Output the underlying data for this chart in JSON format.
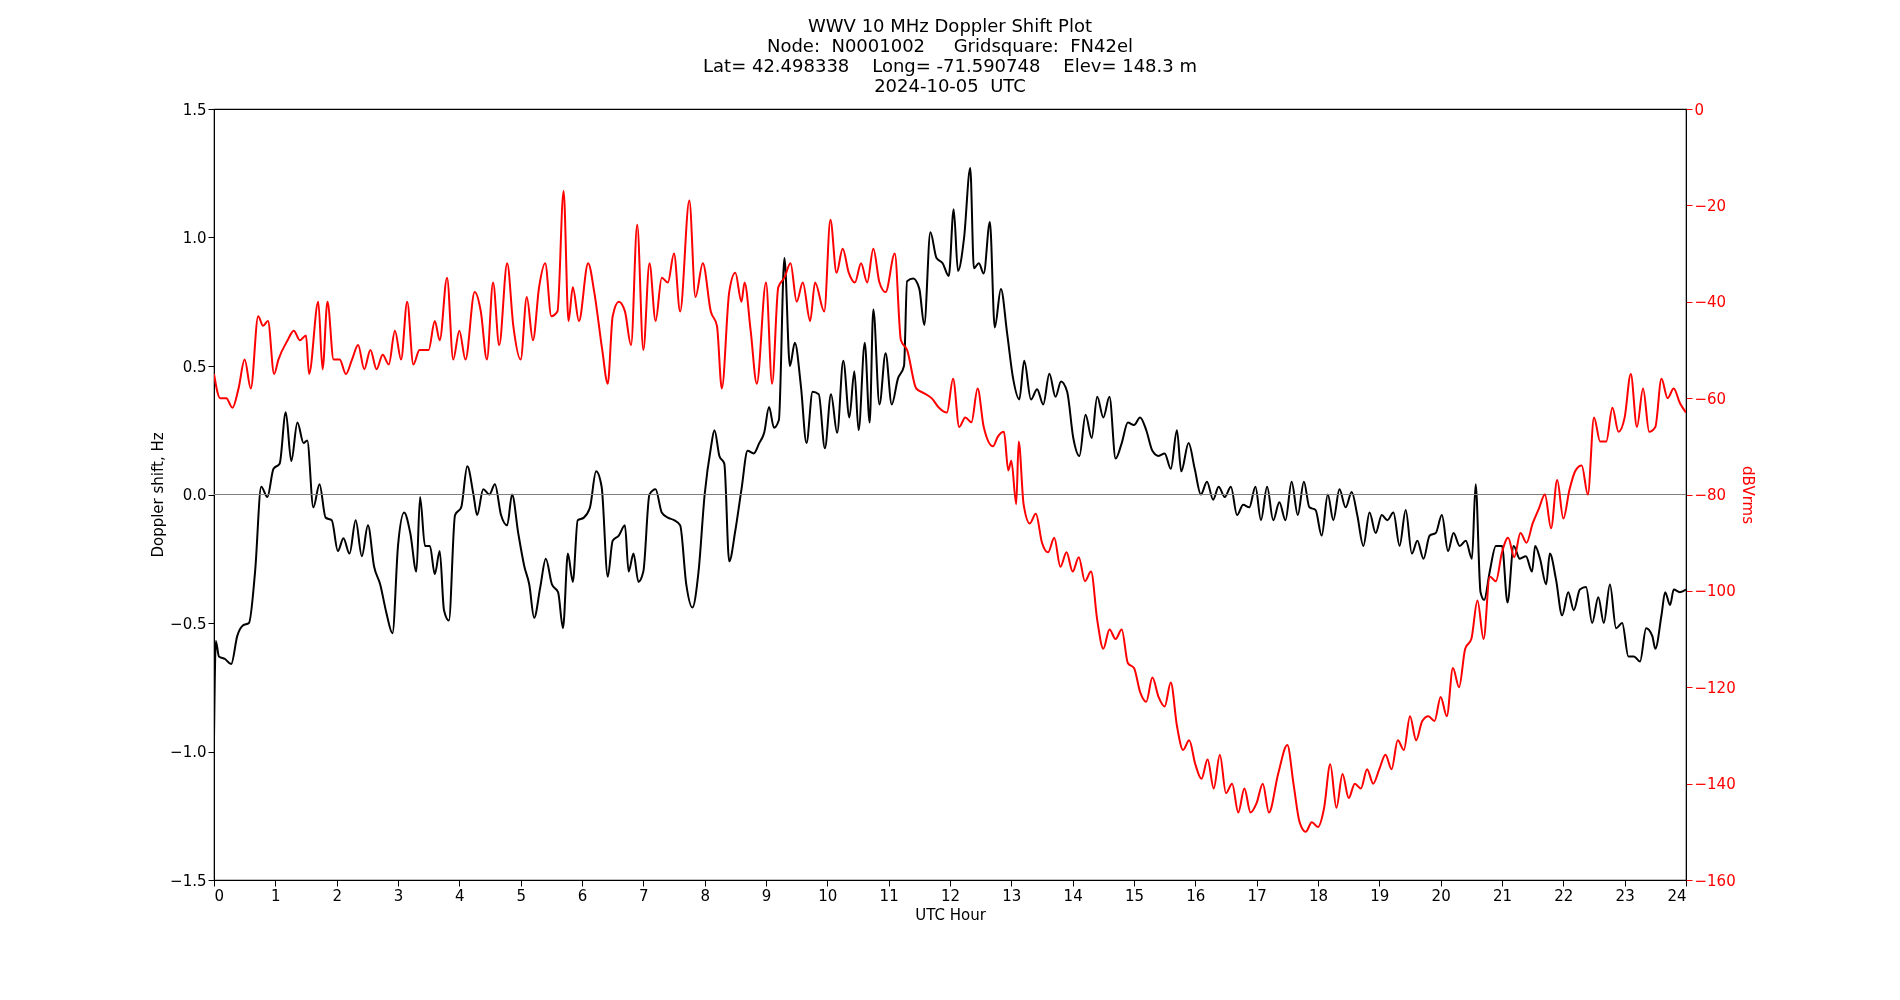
{
  "chart_data": {
    "type": "line",
    "title": "WWV 10 MHz Doppler Shift Plot",
    "subtitle": [
      "Node:  N0001002     Gridsquare:  FN42el",
      "Lat= 42.498338    Long= -71.590748    Elev= 148.3 m",
      "2024-10-05  UTC"
    ],
    "xlabel": "UTC Hour",
    "ylabel": "Doppler shift, Hz",
    "y2label": "dBVrms",
    "xlim": [
      0,
      24
    ],
    "xticks": [
      0,
      1,
      2,
      3,
      4,
      5,
      6,
      7,
      8,
      9,
      10,
      11,
      12,
      13,
      14,
      15,
      16,
      17,
      18,
      19,
      20,
      21,
      22,
      23,
      24
    ],
    "ylim": [
      -1.5,
      1.5
    ],
    "yticks": [
      {
        "value": -1.5,
        "label": "−1.5"
      },
      {
        "value": -1,
        "label": "−1.0"
      },
      {
        "value": -0.5,
        "label": "−0.5"
      },
      {
        "value": 0,
        "label": "0.0"
      },
      {
        "value": 0.5,
        "label": "0.5"
      },
      {
        "value": 1,
        "label": "1.0"
      },
      {
        "value": 1.5,
        "label": "1.5"
      }
    ],
    "y2lim": [
      -160,
      0
    ],
    "y2ticks": [
      {
        "value": -160,
        "label": "−160"
      },
      {
        "value": -140,
        "label": "−140"
      },
      {
        "value": -120,
        "label": "−120"
      },
      {
        "value": -100,
        "label": "−100"
      },
      {
        "value": -80,
        "label": "−80"
      },
      {
        "value": -60,
        "label": "−60"
      },
      {
        "value": -40,
        "label": "−40"
      },
      {
        "value": -20,
        "label": "−20"
      },
      0
    ],
    "ref_lines": [
      {
        "axis": "y",
        "value": 0,
        "color": "#808080"
      }
    ],
    "series": [
      {
        "color": "#000000",
        "x": [
          0,
          0.03,
          0.08,
          0.18,
          0.28,
          0.38,
          0.47,
          0.57,
          0.67,
          0.77,
          0.87,
          0.97,
          1.07,
          1.17,
          1.26,
          1.36,
          1.46,
          1.52,
          1.62,
          1.72,
          1.82,
          1.92,
          2.02,
          2.11,
          2.21,
          2.31,
          2.41,
          2.51,
          2.61,
          2.71,
          2.81,
          2.91,
          3.0,
          3.1,
          3.2,
          3.3,
          3.36,
          3.44,
          3.52,
          3.6,
          3.68,
          3.75,
          3.83,
          3.93,
          4.03,
          4.13,
          4.23,
          4.29,
          4.39,
          4.49,
          4.58,
          4.68,
          4.78,
          4.86,
          4.96,
          5.06,
          5.14,
          5.22,
          5.32,
          5.41,
          5.51,
          5.61,
          5.69,
          5.77,
          5.85,
          5.93,
          6.03,
          6.13,
          6.23,
          6.32,
          6.42,
          6.5,
          6.6,
          6.7,
          6.76,
          6.84,
          6.92,
          7.0,
          7.1,
          7.2,
          7.3,
          7.4,
          7.5,
          7.6,
          7.7,
          7.8,
          7.9,
          8.0,
          8.1,
          8.16,
          8.24,
          8.32,
          8.4,
          8.5,
          8.6,
          8.7,
          8.8,
          8.89,
          8.97,
          9.05,
          9.13,
          9.21,
          9.3,
          9.39,
          9.47,
          9.57,
          9.66,
          9.76,
          9.86,
          9.96,
          10.06,
          10.16,
          10.26,
          10.36,
          10.44,
          10.51,
          10.61,
          10.69,
          10.75,
          10.85,
          10.95,
          11.05,
          11.15,
          11.25,
          11.3,
          11.4,
          11.5,
          11.58,
          11.68,
          11.78,
          11.88,
          11.98,
          12.06,
          12.13,
          12.23,
          12.33,
          12.39,
          12.47,
          12.55,
          12.65,
          12.73,
          12.83,
          12.93,
          13.03,
          13.13,
          13.21,
          13.32,
          13.42,
          13.52,
          13.62,
          13.72,
          13.81,
          13.91,
          14.01,
          14.11,
          14.21,
          14.31,
          14.4,
          14.5,
          14.6,
          14.7,
          14.8,
          14.9,
          15.0,
          15.1,
          15.2,
          15.3,
          15.4,
          15.5,
          15.6,
          15.7,
          15.77,
          15.89,
          15.99,
          16.09,
          16.19,
          16.29,
          16.38,
          16.48,
          16.58,
          16.68,
          16.78,
          16.88,
          16.98,
          17.07,
          17.17,
          17.27,
          17.37,
          17.47,
          17.57,
          17.67,
          17.77,
          17.86,
          17.96,
          18.06,
          18.16,
          18.25,
          18.35,
          18.45,
          18.55,
          18.64,
          18.74,
          18.84,
          18.94,
          19.04,
          19.13,
          19.23,
          19.33,
          19.43,
          19.53,
          19.62,
          19.72,
          19.82,
          19.92,
          20.02,
          20.12,
          20.21,
          20.31,
          20.41,
          20.51,
          20.57,
          20.65,
          20.71,
          20.8,
          20.9,
          21.0,
          21.09,
          21.19,
          21.29,
          21.39,
          21.49,
          21.54,
          21.62,
          21.72,
          21.78,
          21.88,
          21.98,
          22.08,
          22.17,
          22.27,
          22.37,
          22.47,
          22.57,
          22.66,
          22.76,
          22.86,
          22.96,
          23.06,
          23.15,
          23.25,
          23.35,
          23.45,
          23.5,
          23.6,
          23.66,
          23.74,
          23.8,
          23.9,
          24.0
        ],
        "values": [
          -0.95,
          -0.57,
          -0.63,
          -0.64,
          -0.66,
          -0.55,
          -0.51,
          -0.5,
          -0.3,
          0.03,
          -0.01,
          0.1,
          0.12,
          0.32,
          0.13,
          0.28,
          0.2,
          0.21,
          -0.05,
          0.04,
          -0.09,
          -0.1,
          -0.22,
          -0.17,
          -0.23,
          -0.1,
          -0.24,
          -0.12,
          -0.28,
          -0.35,
          -0.46,
          -0.54,
          -0.2,
          -0.07,
          -0.15,
          -0.3,
          -0.01,
          -0.2,
          -0.2,
          -0.31,
          -0.22,
          -0.45,
          -0.49,
          -0.08,
          -0.05,
          0.11,
          0.0,
          -0.08,
          0.02,
          0.0,
          0.04,
          -0.08,
          -0.12,
          0.0,
          -0.15,
          -0.28,
          -0.35,
          -0.48,
          -0.36,
          -0.25,
          -0.35,
          -0.38,
          -0.52,
          -0.23,
          -0.34,
          -0.1,
          -0.09,
          -0.05,
          0.09,
          0.03,
          -0.32,
          -0.18,
          -0.16,
          -0.12,
          -0.3,
          -0.23,
          -0.34,
          -0.3,
          0.0,
          0.02,
          -0.07,
          -0.09,
          -0.1,
          -0.12,
          -0.35,
          -0.44,
          -0.3,
          0.0,
          0.18,
          0.25,
          0.15,
          0.12,
          -0.26,
          -0.14,
          0.02,
          0.17,
          0.16,
          0.2,
          0.24,
          0.34,
          0.26,
          0.29,
          0.92,
          0.5,
          0.59,
          0.42,
          0.2,
          0.4,
          0.39,
          0.18,
          0.39,
          0.24,
          0.52,
          0.3,
          0.48,
          0.25,
          0.59,
          0.28,
          0.72,
          0.35,
          0.55,
          0.35,
          0.45,
          0.5,
          0.83,
          0.84,
          0.8,
          0.66,
          1.02,
          0.92,
          0.9,
          0.85,
          1.11,
          0.87,
          1.0,
          1.27,
          0.88,
          0.9,
          0.86,
          1.06,
          0.65,
          0.8,
          0.63,
          0.45,
          0.37,
          0.52,
          0.37,
          0.41,
          0.35,
          0.47,
          0.38,
          0.44,
          0.4,
          0.22,
          0.15,
          0.31,
          0.22,
          0.38,
          0.3,
          0.38,
          0.14,
          0.2,
          0.28,
          0.27,
          0.3,
          0.25,
          0.17,
          0.15,
          0.16,
          0.1,
          0.25,
          0.09,
          0.2,
          0.1,
          0.0,
          0.05,
          -0.02,
          0.03,
          -0.01,
          0.03,
          -0.08,
          -0.04,
          -0.05,
          0.03,
          -0.1,
          0.03,
          -0.1,
          -0.03,
          -0.1,
          0.05,
          -0.08,
          0.05,
          -0.05,
          -0.06,
          -0.16,
          0.0,
          -0.1,
          0.02,
          -0.05,
          0.01,
          -0.08,
          -0.2,
          -0.07,
          -0.15,
          -0.08,
          -0.1,
          -0.07,
          -0.2,
          -0.06,
          -0.23,
          -0.18,
          -0.25,
          -0.16,
          -0.15,
          -0.08,
          -0.22,
          -0.15,
          -0.2,
          -0.18,
          -0.25,
          0.04,
          -0.38,
          -0.41,
          -0.3,
          -0.2,
          -0.2,
          -0.42,
          -0.2,
          -0.25,
          -0.24,
          -0.3,
          -0.2,
          -0.25,
          -0.35,
          -0.23,
          -0.33,
          -0.47,
          -0.38,
          -0.45,
          -0.37,
          -0.36,
          -0.5,
          -0.4,
          -0.5,
          -0.35,
          -0.52,
          -0.5,
          -0.63,
          -0.63,
          -0.65,
          -0.52,
          -0.55,
          -0.6,
          -0.47,
          -0.38,
          -0.43,
          -0.37,
          -0.38,
          -0.37
        ]
      },
      {
        "color": "#ff0000",
        "axis": "y2",
        "x": [
          0,
          0.1,
          0.2,
          0.3,
          0.4,
          0.5,
          0.6,
          0.72,
          0.8,
          0.88,
          0.98,
          1.05,
          1.2,
          1.3,
          1.4,
          1.5,
          1.55,
          1.7,
          1.77,
          1.85,
          1.95,
          2.05,
          2.15,
          2.25,
          2.35,
          2.45,
          2.55,
          2.65,
          2.75,
          2.85,
          2.95,
          3.05,
          3.15,
          3.25,
          3.35,
          3.5,
          3.6,
          3.68,
          3.8,
          3.9,
          4.0,
          4.1,
          4.25,
          4.35,
          4.45,
          4.55,
          4.65,
          4.78,
          4.88,
          5.0,
          5.1,
          5.2,
          5.3,
          5.4,
          5.5,
          5.6,
          5.7,
          5.78,
          5.85,
          5.95,
          6.1,
          6.2,
          6.33,
          6.42,
          6.5,
          6.6,
          6.7,
          6.8,
          6.9,
          7.0,
          7.1,
          7.2,
          7.3,
          7.4,
          7.5,
          7.6,
          7.75,
          7.85,
          7.97,
          8.1,
          8.2,
          8.28,
          8.4,
          8.5,
          8.6,
          8.65,
          8.75,
          8.85,
          9.0,
          9.1,
          9.2,
          9.3,
          9.4,
          9.5,
          9.6,
          9.72,
          9.8,
          9.95,
          10.05,
          10.15,
          10.25,
          10.35,
          10.45,
          10.55,
          10.65,
          10.75,
          10.85,
          10.95,
          11.1,
          11.2,
          11.3,
          11.45,
          11.58,
          11.7,
          11.82,
          11.95,
          12.05,
          12.15,
          12.25,
          12.35,
          12.45,
          12.55,
          12.7,
          12.78,
          12.88,
          12.95,
          13.0,
          13.08,
          13.12,
          13.2,
          13.3,
          13.4,
          13.5,
          13.6,
          13.7,
          13.8,
          13.9,
          14.0,
          14.1,
          14.2,
          14.3,
          14.4,
          14.5,
          14.6,
          14.7,
          14.8,
          14.9,
          15.0,
          15.1,
          15.2,
          15.3,
          15.4,
          15.5,
          15.6,
          15.7,
          15.8,
          15.9,
          16.0,
          16.1,
          16.2,
          16.3,
          16.4,
          16.5,
          16.6,
          16.7,
          16.8,
          16.9,
          17.0,
          17.1,
          17.2,
          17.35,
          17.5,
          17.6,
          17.7,
          17.8,
          17.9,
          18.0,
          18.1,
          18.2,
          18.3,
          18.4,
          18.5,
          18.6,
          18.7,
          18.8,
          18.9,
          19.0,
          19.1,
          19.2,
          19.3,
          19.4,
          19.5,
          19.6,
          19.7,
          19.8,
          19.9,
          20.0,
          20.1,
          20.2,
          20.3,
          20.4,
          20.5,
          20.6,
          20.7,
          20.8,
          20.9,
          21.0,
          21.1,
          21.2,
          21.3,
          21.4,
          21.5,
          21.6,
          21.7,
          21.8,
          21.9,
          22.0,
          22.1,
          22.2,
          22.3,
          22.4,
          22.5,
          22.6,
          22.7,
          22.8,
          22.9,
          23.0,
          23.1,
          23.2,
          23.3,
          23.4,
          23.5,
          23.6,
          23.7,
          23.8,
          23.9,
          24.0
        ],
        "values": [
          -55,
          -60,
          -60,
          -62,
          -58,
          -52,
          -58,
          -43,
          -45,
          -44,
          -55,
          -52,
          -48,
          -46,
          -48,
          -47,
          -55,
          -40,
          -54,
          -40,
          -52,
          -52,
          -55,
          -52,
          -49,
          -54,
          -50,
          -54,
          -51,
          -53,
          -46,
          -52,
          -40,
          -53,
          -50,
          -50,
          -44,
          -48,
          -35,
          -52,
          -46,
          -52,
          -38,
          -42,
          -52,
          -36,
          -49,
          -32,
          -45,
          -52,
          -39,
          -48,
          -37,
          -32,
          -43,
          -42,
          -17,
          -44,
          -37,
          -44,
          -32,
          -38,
          -50,
          -57,
          -43,
          -40,
          -42,
          -49,
          -24,
          -50,
          -32,
          -44,
          -35,
          -36,
          -30,
          -42,
          -19,
          -39,
          -32,
          -42,
          -45,
          -58,
          -38,
          -34,
          -40,
          -36,
          -46,
          -57,
          -36,
          -57,
          -37,
          -35,
          -32,
          -40,
          -36,
          -44,
          -36,
          -42,
          -23,
          -34,
          -29,
          -34,
          -36,
          -32,
          -36,
          -29,
          -36,
          -38,
          -30,
          -48,
          -50,
          -58,
          -59,
          -60,
          -62,
          -63,
          -56,
          -66,
          -64,
          -65,
          -58,
          -66,
          -70,
          -68,
          -67,
          -75,
          -73,
          -82,
          -69,
          -82,
          -86,
          -84,
          -90,
          -92,
          -89,
          -95,
          -92,
          -96,
          -93,
          -98,
          -96,
          -106,
          -112,
          -108,
          -110,
          -108,
          -115,
          -116,
          -121,
          -123,
          -118,
          -122,
          -124,
          -119,
          -128,
          -133,
          -131,
          -136,
          -139,
          -135,
          -141,
          -134,
          -142,
          -140,
          -146,
          -141,
          -146,
          -144,
          -140,
          -146,
          -138,
          -132,
          -140,
          -148,
          -150,
          -148,
          -149,
          -145,
          -136,
          -145,
          -138,
          -143,
          -140,
          -141,
          -137,
          -140,
          -137,
          -134,
          -137,
          -131,
          -133,
          -126,
          -131,
          -127,
          -126,
          -127,
          -122,
          -126,
          -116,
          -120,
          -112,
          -110,
          -102,
          -110,
          -97,
          -98,
          -92,
          -89,
          -93,
          -88,
          -90,
          -86,
          -83,
          -80,
          -87,
          -77,
          -85,
          -79,
          -75,
          -74,
          -80,
          -64,
          -69,
          -69,
          -62,
          -67,
          -64,
          -55,
          -66,
          -58,
          -67,
          -66,
          -56,
          -60,
          -58,
          -61,
          -63
        ]
      }
    ]
  }
}
